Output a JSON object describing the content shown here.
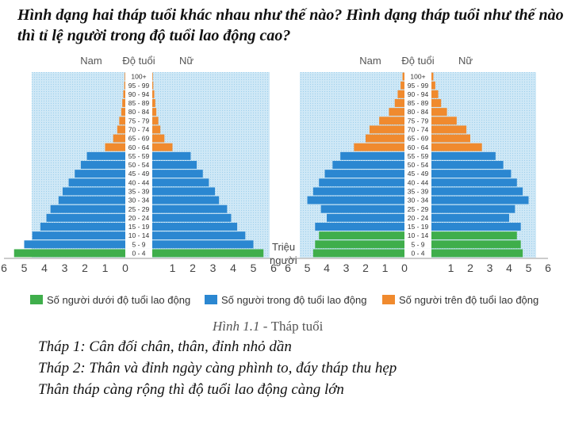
{
  "question": "Hình dạng hai tháp tuổi khác nhau như thế nào? Hình dạng tháp tuổi như thế nào thì tỉ lệ người trong độ tuổi lao động cao?",
  "chart_data": [
    {
      "type": "bar",
      "orientation": "horizontal-pyramid",
      "header": {
        "male": "Nam",
        "age": "Độ tuổi",
        "female": "Nữ"
      },
      "unit_label": "Triệu người",
      "categories": [
        "0 - 4",
        "5 - 9",
        "10 - 14",
        "15 - 19",
        "20 - 24",
        "25 - 29",
        "30 - 34",
        "35 - 39",
        "40 - 44",
        "45 - 49",
        "50 - 54",
        "55 - 59",
        "60 - 64",
        "65 - 69",
        "70 - 74",
        "75 - 79",
        "80 - 84",
        "85 - 89",
        "90 - 94",
        "95 - 99",
        "100+"
      ],
      "group_colors": [
        "#3fae4b",
        "#2b87d1",
        "#2b87d1",
        "#2b87d1",
        "#2b87d1",
        "#2b87d1",
        "#2b87d1",
        "#2b87d1",
        "#2b87d1",
        "#2b87d1",
        "#2b87d1",
        "#2b87d1",
        "#f08a2e",
        "#f08a2e",
        "#f08a2e",
        "#f08a2e",
        "#f08a2e",
        "#f08a2e",
        "#f08a2e",
        "#f08a2e",
        "#f08a2e"
      ],
      "series": [
        {
          "name": "Nam",
          "values": [
            5.5,
            5.0,
            4.6,
            4.2,
            3.9,
            3.7,
            3.3,
            3.1,
            2.8,
            2.5,
            2.2,
            1.9,
            1.0,
            0.6,
            0.4,
            0.3,
            0.2,
            0.15,
            0.1,
            0.05,
            0.03
          ]
        },
        {
          "name": "Nữ",
          "values": [
            5.5,
            5.0,
            4.6,
            4.2,
            3.9,
            3.7,
            3.3,
            3.1,
            2.8,
            2.5,
            2.2,
            1.9,
            1.0,
            0.6,
            0.4,
            0.3,
            0.2,
            0.15,
            0.1,
            0.05,
            0.03
          ]
        }
      ],
      "ticks": [
        "6",
        "5",
        "4",
        "3",
        "2",
        "1",
        "0",
        "1",
        "2",
        "3",
        "4",
        "5",
        "6"
      ],
      "xlim": [
        -6,
        6
      ]
    },
    {
      "type": "bar",
      "orientation": "horizontal-pyramid",
      "header": {
        "male": "Nam",
        "age": "Độ tuổi",
        "female": "Nữ"
      },
      "categories": [
        "0 - 4",
        "5 - 9",
        "10 - 14",
        "15 - 19",
        "20 - 24",
        "25 - 29",
        "30 - 34",
        "35 - 39",
        "40 - 44",
        "45 - 49",
        "50 - 54",
        "55 - 59",
        "60 - 64",
        "65 - 69",
        "70 - 74",
        "75 - 79",
        "80 - 84",
        "85 - 89",
        "90 - 94",
        "95 - 99",
        "100+"
      ],
      "group_colors": [
        "#3fae4b",
        "#3fae4b",
        "#3fae4b",
        "#2b87d1",
        "#2b87d1",
        "#2b87d1",
        "#2b87d1",
        "#2b87d1",
        "#2b87d1",
        "#2b87d1",
        "#2b87d1",
        "#2b87d1",
        "#f08a2e",
        "#f08a2e",
        "#f08a2e",
        "#f08a2e",
        "#f08a2e",
        "#f08a2e",
        "#f08a2e",
        "#f08a2e",
        "#f08a2e"
      ],
      "series": [
        {
          "name": "Nam",
          "values": [
            4.7,
            4.6,
            4.4,
            4.6,
            4.0,
            4.3,
            5.0,
            4.7,
            4.4,
            4.1,
            3.7,
            3.3,
            2.6,
            2.0,
            1.8,
            1.3,
            0.8,
            0.5,
            0.35,
            0.2,
            0.1
          ]
        },
        {
          "name": "Nữ",
          "values": [
            4.7,
            4.6,
            4.4,
            4.6,
            4.0,
            4.3,
            5.0,
            4.7,
            4.4,
            4.1,
            3.7,
            3.3,
            2.6,
            2.0,
            1.8,
            1.3,
            0.8,
            0.5,
            0.35,
            0.2,
            0.1
          ]
        }
      ],
      "ticks": [
        "6",
        "5",
        "4",
        "3",
        "2",
        "1",
        "0",
        "1",
        "2",
        "3",
        "4",
        "5",
        "6"
      ],
      "xlim": [
        -6,
        6
      ]
    }
  ],
  "legend": [
    {
      "label": "Số người dưới độ tuổi lao động",
      "color": "#3fae4b"
    },
    {
      "label": "Số người trong độ tuổi lao động",
      "color": "#2b87d1"
    },
    {
      "label": "Số người trên độ tuổi lao động",
      "color": "#f08a2e"
    }
  ],
  "caption": {
    "num": "Hình 1.1",
    "title": "Tháp tuổi"
  },
  "notes": [
    "Tháp 1: Cân đối chân, thân, đỉnh nhỏ dần",
    "Tháp 2: Thân và đỉnh ngày càng phình to, đáy tháp thu hẹp",
    "Thân tháp càng rộng thì độ tuổi lao động càng lớn"
  ]
}
